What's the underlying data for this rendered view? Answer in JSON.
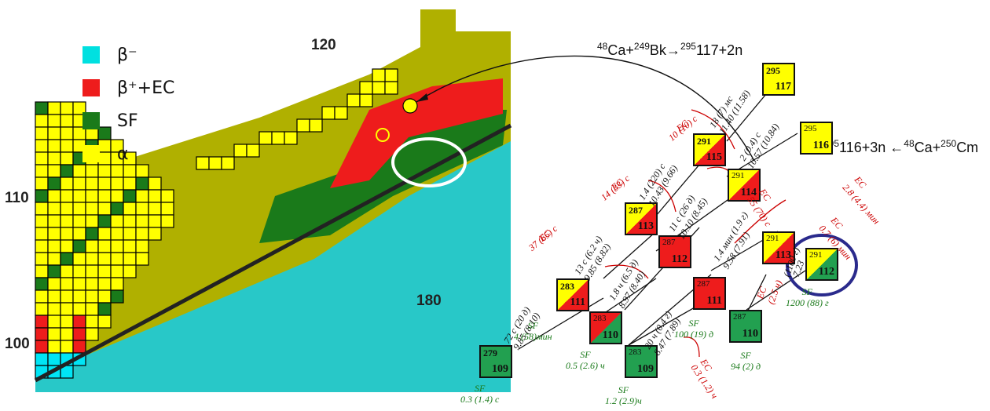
{
  "legend": [
    {
      "label": "β⁻",
      "color": "#00d5d5",
      "name": "beta-minus"
    },
    {
      "label": "β⁺+EC",
      "color": "#ee1c1c",
      "name": "beta-plus-ec"
    },
    {
      "label": "SF",
      "color": "#1a7a1a",
      "name": "sf"
    },
    {
      "label": "α",
      "color": "#ffff00",
      "name": "alpha"
    }
  ],
  "axis_labels": {
    "z110": "110",
    "z100": "100",
    "z120": "120",
    "n180": "180"
  },
  "reactions": {
    "r1": {
      "p1": "48",
      "t1": "Ca+",
      "p2": "249",
      "t2": "Bk",
      "arrow": "→",
      "p3": "295",
      "t3": "117+2n"
    },
    "r2": {
      "t1": "295",
      "t2": "116+3n ←",
      "p1": "48",
      "t3": "Ca+",
      "p2": "250",
      "t4": "Cm"
    }
  },
  "colors": {
    "olive": "#b0b000",
    "cyan": "#28c8c8",
    "yellow": "#ffff00",
    "red": "#ee1c1c",
    "green": "#1a7a1a",
    "greenbox": "#22a050",
    "navy": "#2a2a8c"
  },
  "nuclides": [
    {
      "id": "n295-117",
      "a": "295",
      "z": "117",
      "fill": "yellow",
      "bold": true
    },
    {
      "id": "n295-116",
      "a": "295",
      "z": "116",
      "fill": "yellow",
      "bold": false
    },
    {
      "id": "n291-115",
      "a": "291",
      "z": "115",
      "fill": "yellow-red",
      "bold": true
    },
    {
      "id": "n291-114",
      "a": "291",
      "z": "114",
      "fill": "yellow-red",
      "bold": false
    },
    {
      "id": "n287-113",
      "a": "287",
      "z": "113",
      "fill": "yellow-red",
      "bold": true
    },
    {
      "id": "n291-113",
      "a": "291",
      "z": "113",
      "fill": "yellow-red",
      "bold": false
    },
    {
      "id": "n287-112",
      "a": "287",
      "z": "112",
      "fill": "red",
      "bold": false
    },
    {
      "id": "n291-112",
      "a": "291",
      "z": "112",
      "fill": "yellow-green",
      "bold": false
    },
    {
      "id": "n283-111",
      "a": "283",
      "z": "111",
      "fill": "yellow-red",
      "bold": true
    },
    {
      "id": "n283-110",
      "a": "283",
      "z": "110",
      "fill": "red-green",
      "bold": false
    },
    {
      "id": "n287-111",
      "a": "287",
      "z": "111",
      "fill": "red",
      "bold": false
    },
    {
      "id": "n287-110",
      "a": "287",
      "z": "110",
      "fill": "green",
      "bold": false
    },
    {
      "id": "n279-109",
      "a": "279",
      "z": "109",
      "fill": "green",
      "bold": true
    },
    {
      "id": "n283-109",
      "a": "283",
      "z": "109",
      "fill": "green",
      "bold": false
    }
  ],
  "decay_labels": [
    {
      "id": "d1a",
      "text": "18 (7) мс",
      "cls": "k"
    },
    {
      "id": "d1b",
      "text": "11.40 (11.58)",
      "cls": "k"
    },
    {
      "id": "d1c",
      "text": "EC",
      "cls": "r"
    },
    {
      "id": "d1d",
      "text": "10 (10) с",
      "cls": "r"
    },
    {
      "id": "d2a",
      "text": "2 (0.4) с",
      "cls": "k"
    },
    {
      "id": "d2b",
      "text": "10.57 (10.84)",
      "cls": "k"
    },
    {
      "id": "d2c",
      "text": "EC",
      "cls": "r"
    },
    {
      "id": "d2d",
      "text": "55 (70) с",
      "cls": "r"
    },
    {
      "id": "d3a",
      "text": "1.4 (220) с",
      "cls": "k"
    },
    {
      "id": "d3b",
      "text": "10.43 (9.66)",
      "cls": "k"
    },
    {
      "id": "d3c",
      "text": "EC",
      "cls": "r"
    },
    {
      "id": "d3d",
      "text": "14 (33) с",
      "cls": "r"
    },
    {
      "id": "d4a",
      "text": "EC",
      "cls": "r"
    },
    {
      "id": "d4b",
      "text": "2.8 (4.4) мин",
      "cls": "r"
    },
    {
      "id": "d5a",
      "text": "11 с (26 д)",
      "cls": "k"
    },
    {
      "id": "d5b",
      "text": "10.10 (8.45)",
      "cls": "k"
    },
    {
      "id": "d6a",
      "text": "EC",
      "cls": "r"
    },
    {
      "id": "d6b",
      "text": "0.7 (6) мин",
      "cls": "r"
    },
    {
      "id": "d7a",
      "text": "13 с (6.2 ч)",
      "cls": "k"
    },
    {
      "id": "d7b",
      "text": "9.85 (8.82)",
      "cls": "k"
    },
    {
      "id": "d8a",
      "text": "EC",
      "cls": "r"
    },
    {
      "id": "d8b",
      "text": "37 (65) с",
      "cls": "r"
    },
    {
      "id": "d9a",
      "text": "1.4 мин (1.9 г)",
      "cls": "k"
    },
    {
      "id": "d9b",
      "text": "9.58 (7.91)",
      "cls": "k"
    },
    {
      "id": "d10a",
      "text": "1.8 ч (6.5 д)",
      "cls": "k"
    },
    {
      "id": "d10b",
      "text": "8.97 (8.40)",
      "cls": "k"
    },
    {
      "id": "d11a",
      "text": "(1100 г)",
      "cls": "k"
    },
    {
      "id": "d11b",
      "text": "7.23",
      "cls": "k"
    },
    {
      "id": "d12a",
      "text": "EC",
      "cls": "r"
    },
    {
      "id": "d12b",
      "text": "(2.5 ч)",
      "cls": "r"
    },
    {
      "id": "d13a",
      "text": "72 с (20 д)",
      "cls": "k"
    },
    {
      "id": "d13b",
      "text": "9.85 (8.10)",
      "cls": "k"
    },
    {
      "id": "d14a",
      "text": "20 ч (0.4 г)",
      "cls": "k"
    },
    {
      "id": "d14b",
      "text": "8.47 (7.89)",
      "cls": "k"
    },
    {
      "id": "d15a",
      "text": "EC",
      "cls": "r"
    },
    {
      "id": "d15b",
      "text": "0.3 (1.2) ч",
      "cls": "r"
    }
  ],
  "sf_labels": [
    {
      "id": "sf1",
      "l1": "SF",
      "l2": "1200 (88) г"
    },
    {
      "id": "sf2",
      "l1": "SF",
      "l2": "4 (58)мин"
    },
    {
      "id": "sf3",
      "l1": "SF",
      "l2": "100 (19) д"
    },
    {
      "id": "sf4",
      "l1": "SF",
      "l2": "0.5 (2.6) ч"
    },
    {
      "id": "sf5",
      "l1": "SF",
      "l2": "94 (2) д"
    },
    {
      "id": "sf6",
      "l1": "SF",
      "l2": "0.3 (1.4) с"
    },
    {
      "id": "sf7",
      "l1": "SF",
      "l2": "1.2 (2.9)ч"
    }
  ]
}
